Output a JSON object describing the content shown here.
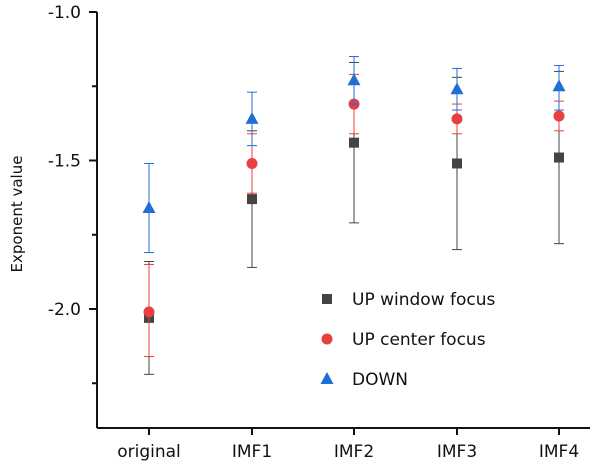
{
  "chart_data": {
    "type": "scatter",
    "categories": [
      "original",
      "IMF1",
      "IMF2",
      "IMF3",
      "IMF4"
    ],
    "ylabel": "Exponent value",
    "xlabel": "",
    "ylim": [
      -2.35,
      -1.0
    ],
    "yticks": [
      -1.0,
      -1.5,
      -2.0
    ],
    "yticks_labels": [
      "-1.0",
      "-1.5",
      "-2.0"
    ],
    "legend_position": "center-right",
    "series": [
      {
        "name": "UP window focus",
        "marker": "square",
        "color": "#444444",
        "values": [
          -2.03,
          -1.63,
          -1.44,
          -1.51,
          -1.49
        ],
        "err_low": [
          -2.22,
          -1.86,
          -1.71,
          -1.8,
          -1.78
        ],
        "err_high": [
          -1.84,
          -1.4,
          -1.17,
          -1.22,
          -1.2
        ]
      },
      {
        "name": "UP center focus",
        "marker": "circle",
        "color": "#e8403f",
        "values": [
          -2.01,
          -1.51,
          -1.31,
          -1.36,
          -1.35
        ],
        "err_low": [
          -2.16,
          -1.61,
          -1.41,
          -1.41,
          -1.4
        ],
        "err_high": [
          -1.85,
          -1.41,
          -1.21,
          -1.31,
          -1.3
        ]
      },
      {
        "name": "DOWN",
        "marker": "triangle",
        "color": "#1f6fd6",
        "values": [
          -1.66,
          -1.36,
          -1.23,
          -1.26,
          -1.25
        ],
        "err_low": [
          -1.81,
          -1.45,
          -1.31,
          -1.33,
          -1.33
        ],
        "err_high": [
          -1.51,
          -1.27,
          -1.15,
          -1.19,
          -1.18
        ]
      }
    ]
  }
}
